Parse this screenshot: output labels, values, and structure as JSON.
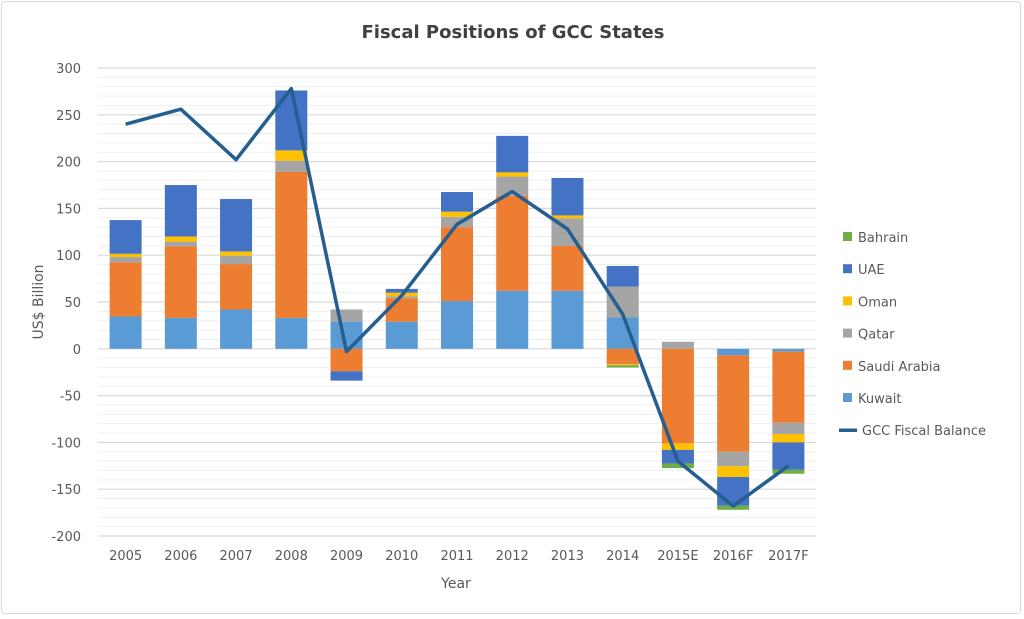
{
  "chart_data": {
    "type": "bar",
    "stacked": true,
    "title": "Fiscal Positions of GCC States",
    "xlabel": "Year",
    "ylabel": "US$ Billion",
    "ylim": [
      -200,
      300
    ],
    "yticks": [
      -200,
      -150,
      -100,
      -50,
      0,
      50,
      100,
      150,
      200,
      250,
      300
    ],
    "grid": true,
    "legend_position": "right",
    "categories": [
      "2005",
      "2006",
      "2007",
      "2008",
      "2009",
      "2010",
      "2011",
      "2012",
      "2013",
      "2014",
      "2015E",
      "2016F",
      "2017F"
    ],
    "series": [
      {
        "name": "Kuwait",
        "color": "#5B9BD5",
        "values": [
          34.5,
          33,
          42,
          33,
          29,
          29,
          51,
          62,
          62,
          33.5,
          0,
          -7,
          -3
        ]
      },
      {
        "name": "Saudi Arabia",
        "color": "#ED7D31",
        "values": [
          58,
          76.5,
          48.5,
          156,
          -24,
          25,
          79,
          101.5,
          48,
          -16.5,
          -101,
          -103,
          -76
        ]
      },
      {
        "name": "Qatar",
        "color": "#A5A5A5",
        "values": [
          5.5,
          5,
          9,
          12,
          13,
          2,
          11,
          20.5,
          29.5,
          33,
          7.5,
          -15.5,
          -12
        ]
      },
      {
        "name": "Oman",
        "color": "#FFC000",
        "values": [
          3.5,
          5.5,
          4.5,
          11,
          0,
          4,
          5.5,
          4.5,
          3,
          -1,
          -7,
          -11.5,
          -9
        ]
      },
      {
        "name": "UAE",
        "color": "#4472C4",
        "values": [
          36,
          55,
          56,
          64,
          -10,
          4,
          21,
          39,
          40,
          22,
          -14.5,
          -30.5,
          -29
        ]
      },
      {
        "name": "Bahrain",
        "color": "#70AD47",
        "values": [
          0,
          0,
          0,
          0,
          0,
          0,
          0,
          0,
          0,
          -2.5,
          -5,
          -4.5,
          -4.5
        ]
      }
    ],
    "line_series": {
      "name": "GCC Fiscal Balance",
      "color": "#255E91",
      "values": [
        240,
        256,
        202,
        278,
        -3,
        57,
        133,
        168,
        128,
        37,
        -120,
        -168,
        -125
      ]
    },
    "legend_order": [
      "Bahrain",
      "UAE",
      "Oman",
      "Qatar",
      "Saudi Arabia",
      "Kuwait",
      "GCC Fiscal Balance"
    ]
  }
}
